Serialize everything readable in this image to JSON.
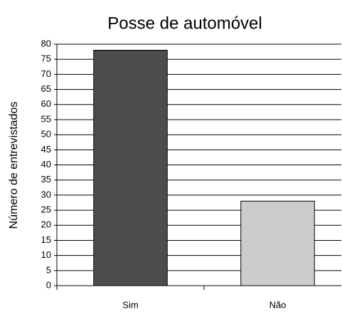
{
  "chart_data": {
    "type": "bar",
    "title": "Posse de automóvel",
    "ylabel": "Número de entrevistados",
    "categories": [
      "Sim",
      "Não"
    ],
    "values": [
      78,
      28
    ],
    "colors": [
      "#4d4d4d",
      "#cccccc"
    ],
    "ylim": [
      0,
      80
    ],
    "yticks": [
      0,
      5,
      10,
      15,
      20,
      25,
      30,
      35,
      40,
      45,
      50,
      55,
      60,
      65,
      70,
      75,
      80
    ],
    "grid": true
  }
}
